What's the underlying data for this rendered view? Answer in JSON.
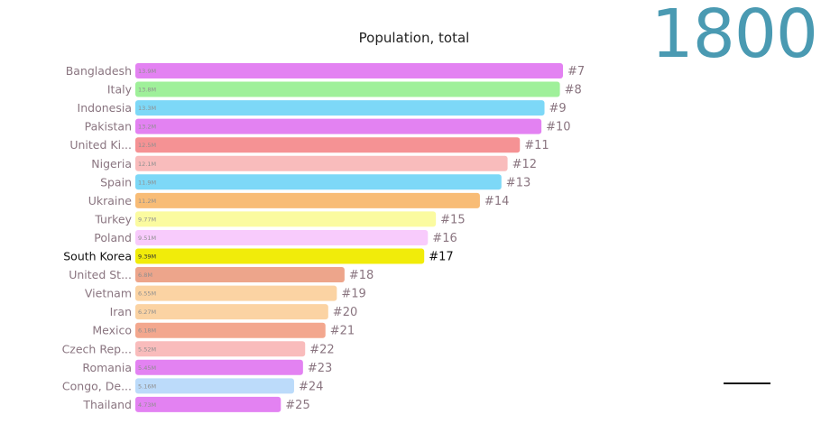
{
  "year": "1800",
  "chart_data": {
    "type": "bar",
    "orientation": "horizontal",
    "title": "Population, total",
    "xlabel": "",
    "ylabel": "",
    "xlim": [
      0,
      13.9
    ],
    "highlight": "South Korea",
    "bars": [
      {
        "name": "Bangladesh",
        "value": 13.9,
        "value_label": "13.9M",
        "rank_label": "#7",
        "color": "#e382f2"
      },
      {
        "name": "Italy",
        "value": 13.8,
        "value_label": "13.8M",
        "rank_label": "#8",
        "color": "#9ff09a"
      },
      {
        "name": "Indonesia",
        "value": 13.3,
        "value_label": "13.3M",
        "rank_label": "#9",
        "color": "#7dd8f7"
      },
      {
        "name": "Pakistan",
        "value": 13.2,
        "value_label": "13.2M",
        "rank_label": "#10",
        "color": "#e382f2"
      },
      {
        "name": "United Ki...",
        "value": 12.5,
        "value_label": "12.5M",
        "rank_label": "#11",
        "color": "#f59294"
      },
      {
        "name": "Nigeria",
        "value": 12.1,
        "value_label": "12.1M",
        "rank_label": "#12",
        "color": "#f9bcbc"
      },
      {
        "name": "Spain",
        "value": 11.9,
        "value_label": "11.9M",
        "rank_label": "#13",
        "color": "#7dd8f7"
      },
      {
        "name": "Ukraine",
        "value": 11.2,
        "value_label": "11.2M",
        "rank_label": "#14",
        "color": "#f8bc76"
      },
      {
        "name": "Turkey",
        "value": 9.77,
        "value_label": "9.77M",
        "rank_label": "#15",
        "color": "#fbfba0"
      },
      {
        "name": "Poland",
        "value": 9.51,
        "value_label": "9.51M",
        "rank_label": "#16",
        "color": "#f8cbfc"
      },
      {
        "name": "South Korea",
        "value": 9.39,
        "value_label": "9.39M",
        "rank_label": "#17",
        "color": "#f1ec0a"
      },
      {
        "name": "United St...",
        "value": 6.8,
        "value_label": "6.8M",
        "rank_label": "#18",
        "color": "#eda58b"
      },
      {
        "name": "Vietnam",
        "value": 6.55,
        "value_label": "6.55M",
        "rank_label": "#19",
        "color": "#fbd3a3"
      },
      {
        "name": "Iran",
        "value": 6.27,
        "value_label": "6.27M",
        "rank_label": "#20",
        "color": "#fbd3a3"
      },
      {
        "name": "Mexico",
        "value": 6.18,
        "value_label": "6.18M",
        "rank_label": "#21",
        "color": "#f3a78e"
      },
      {
        "name": "Czech Rep...",
        "value": 5.52,
        "value_label": "5.52M",
        "rank_label": "#22",
        "color": "#f9bcbc"
      },
      {
        "name": "Romania",
        "value": 5.45,
        "value_label": "5.45M",
        "rank_label": "#23",
        "color": "#e382f2"
      },
      {
        "name": "Congo, De...",
        "value": 5.16,
        "value_label": "5.16M",
        "rank_label": "#24",
        "color": "#bcdbfa"
      },
      {
        "name": "Thailand",
        "value": 4.73,
        "value_label": "4.73M",
        "rank_label": "#25",
        "color": "#e382f2"
      }
    ]
  }
}
